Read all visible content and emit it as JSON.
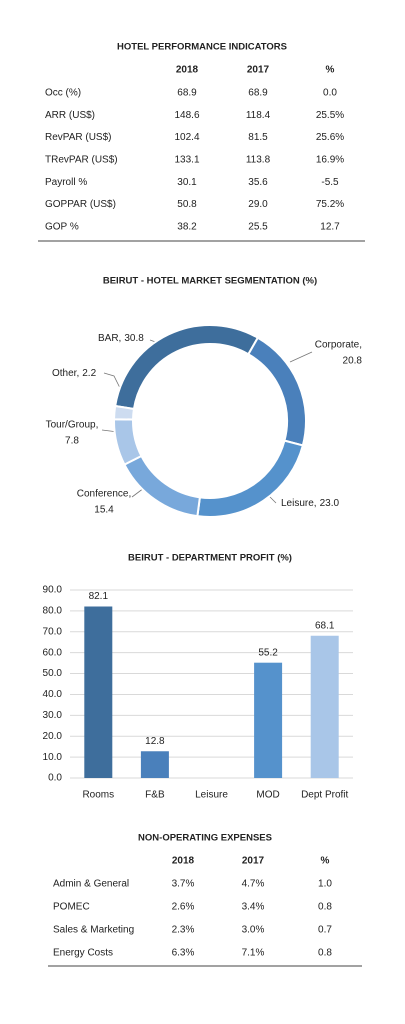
{
  "tables": [
    {
      "title": "HOTEL PERFORMANCE INDICATORS",
      "columns": [
        "2018",
        "2017",
        "%"
      ],
      "rows": [
        [
          "Occ (%)",
          "68.9",
          "68.9",
          "0.0"
        ],
        [
          "ARR (US$)",
          "148.6",
          "118.4",
          "25.5%"
        ],
        [
          "RevPAR (US$)",
          "102.4",
          "81.5",
          "25.6%"
        ],
        [
          "TRevPAR (US$)",
          "133.1",
          "113.8",
          "16.9%"
        ],
        [
          "Payroll %",
          "30.1",
          "35.6",
          "-5.5"
        ],
        [
          "GOPPAR (US$)",
          "50.8",
          "29.0",
          "75.2%"
        ],
        [
          "GOP %",
          "38.2",
          "25.5",
          "12.7"
        ]
      ]
    },
    {
      "title": "NON-OPERATING EXPENSES",
      "columns": [
        "2018",
        "2017",
        "%"
      ],
      "rows": [
        [
          "Admin & General",
          "3.7%",
          "4.7%",
          "1.0"
        ],
        [
          "POMEC",
          "2.6%",
          "3.4%",
          "0.8"
        ],
        [
          "Sales & Marketing",
          "2.3%",
          "3.0%",
          "0.7"
        ],
        [
          "Energy Costs",
          "6.3%",
          "7.1%",
          "0.8"
        ]
      ]
    }
  ],
  "chart_data": [
    {
      "type": "donut",
      "title": "BEIRUT - HOTEL MARKET SEGMENTATION (%)",
      "categories": [
        "BAR,",
        "Corporate,",
        "Leisure,",
        "Conference,",
        "Tour/Group,",
        "Other,"
      ],
      "values": [
        30.8,
        20.8,
        23.0,
        15.4,
        7.8,
        2.2
      ],
      "value_labels": [
        "30.8",
        "20.8",
        "23.0",
        "15.4",
        "7.8",
        "2.2"
      ],
      "colors": [
        "#3e6e9c",
        "#4a80bb",
        "#5592cc",
        "#78a8db",
        "#a9c6e8",
        "#cddcf0"
      ]
    },
    {
      "type": "bar",
      "title": "BEIRUT - DEPARTMENT PROFIT (%)",
      "categories": [
        "Rooms",
        "F&B",
        "Leisure",
        "MOD",
        "Dept Profit"
      ],
      "values": [
        82.1,
        12.8,
        null,
        55.2,
        68.1
      ],
      "value_labels": [
        "82.1",
        "12.8",
        null,
        "55.2",
        "68.1"
      ],
      "colors": [
        "#3e6e9c",
        "#4a80bb",
        null,
        "#5592cc",
        "#a9c6e8"
      ],
      "ylim": [
        0,
        90
      ],
      "yticks": [
        {
          "value": 0,
          "label": "0.0"
        },
        {
          "value": 10,
          "label": "10.0"
        },
        {
          "value": 20,
          "label": "20.0"
        },
        {
          "value": 30,
          "label": "30.0"
        },
        {
          "value": 40,
          "label": "40.0"
        },
        {
          "value": 50,
          "label": "50.0"
        },
        {
          "value": 60,
          "label": "60.0"
        },
        {
          "value": 70,
          "label": "70.0"
        },
        {
          "value": 80,
          "label": "80.0"
        },
        {
          "value": 90,
          "label": "90.0"
        }
      ],
      "grid": true
    }
  ]
}
